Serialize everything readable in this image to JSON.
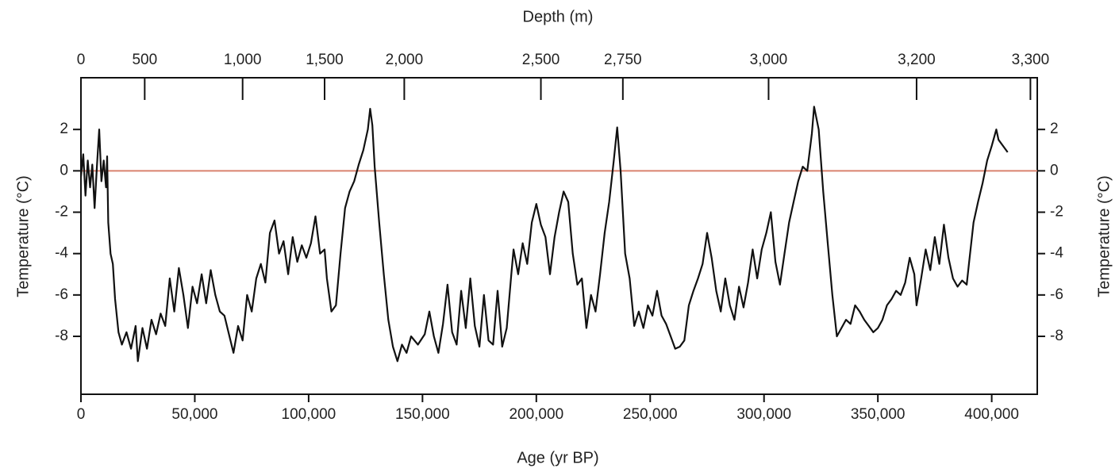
{
  "chart_data": {
    "type": "line",
    "x_label": "Age (yr BP)",
    "x2_label": "Depth (m)",
    "y_label": "Temperature (°C)",
    "xlim": [
      0,
      420000
    ],
    "xticks": [
      0,
      {
        "value": 50000,
        "label": "50,000"
      },
      {
        "value": 100000,
        "label": "100,000"
      },
      {
        "value": 150000,
        "label": "150,000"
      },
      {
        "value": 200000,
        "label": "200,000"
      },
      {
        "value": 250000,
        "label": "250,000"
      },
      {
        "value": 300000,
        "label": "300,000"
      },
      {
        "value": 350000,
        "label": "350,000"
      },
      {
        "value": 400000,
        "label": "400,000"
      }
    ],
    "x2ticks": [
      {
        "value": 0,
        "label": "0"
      },
      {
        "value": 28000,
        "label": "500"
      },
      {
        "value": 71000,
        "label": "1,000"
      },
      {
        "value": 107000,
        "label": "1,500"
      },
      {
        "value": 142000,
        "label": "2,000"
      },
      {
        "value": 202000,
        "label": "2,500"
      },
      {
        "value": 238000,
        "label": "2,750"
      },
      {
        "value": 302000,
        "label": "3,000"
      },
      {
        "value": 367000,
        "label": "3,200"
      },
      {
        "value": 417000,
        "label": "3,300"
      }
    ],
    "ylim": [
      -10.8,
      4.5
    ],
    "yticks": [
      -8,
      -6,
      -4,
      -2,
      0,
      2
    ],
    "reference_line": {
      "value": 0,
      "color": "#d9826e"
    },
    "x": [
      0,
      1000,
      2000,
      3000,
      4000,
      5000,
      6000,
      7000,
      8000,
      9000,
      10000,
      11000,
      11500,
      12000,
      13000,
      14000,
      15000,
      16500,
      18000,
      20000,
      22000,
      24000,
      25000,
      27000,
      29000,
      31000,
      33000,
      35000,
      37000,
      39000,
      41000,
      43000,
      45000,
      47000,
      49000,
      51000,
      53000,
      55000,
      57000,
      59000,
      61000,
      63000,
      65000,
      67000,
      69000,
      71000,
      73000,
      75000,
      77000,
      79000,
      81000,
      83000,
      85000,
      87000,
      89000,
      91000,
      93000,
      95000,
      97000,
      99000,
      101000,
      103000,
      105000,
      107000,
      108000,
      110000,
      112000,
      114000,
      116000,
      118000,
      120000,
      122000,
      124000,
      126000,
      127000,
      128000,
      129000,
      131000,
      133000,
      135000,
      137000,
      139000,
      141000,
      143000,
      145000,
      148000,
      151000,
      153000,
      155000,
      157000,
      159000,
      161000,
      163000,
      165000,
      167000,
      169000,
      171000,
      173000,
      175000,
      177000,
      179000,
      181000,
      183000,
      185000,
      187000,
      189000,
      190000,
      192000,
      194000,
      196000,
      198000,
      200000,
      202000,
      204000,
      206000,
      208000,
      210000,
      212000,
      214000,
      216000,
      218000,
      220000,
      222000,
      224000,
      226000,
      228000,
      230000,
      232000,
      234000,
      235500,
      237000,
      239000,
      241000,
      243000,
      245000,
      247000,
      249000,
      251000,
      253000,
      255000,
      257000,
      259000,
      261000,
      263000,
      265000,
      267000,
      269000,
      271000,
      273000,
      275000,
      277000,
      279000,
      281000,
      283000,
      285000,
      287000,
      289000,
      291000,
      293000,
      295000,
      297000,
      299000,
      301000,
      303000,
      305000,
      307000,
      309000,
      311000,
      313000,
      315000,
      317000,
      319000,
      321000,
      322000,
      324000,
      326000,
      328000,
      330000,
      332000,
      334000,
      336000,
      338000,
      340000,
      342000,
      344000,
      346000,
      348000,
      350000,
      352000,
      354000,
      356000,
      358000,
      360000,
      362000,
      364000,
      366000,
      367000,
      369000,
      371000,
      373000,
      375000,
      377000,
      379000,
      381000,
      383000,
      385000,
      387000,
      389000,
      390000,
      392000,
      394000,
      396000,
      398000,
      400000,
      402000,
      403000,
      405000,
      407000
    ],
    "series": [
      {
        "name": "Temperature",
        "color": "#111111",
        "values": [
          -0.3,
          0.8,
          -1.2,
          0.5,
          -0.8,
          0.3,
          -1.8,
          0.2,
          2.0,
          -0.5,
          0.5,
          -0.8,
          0.7,
          -2.5,
          -4.0,
          -4.5,
          -6.2,
          -7.8,
          -8.4,
          -7.8,
          -8.6,
          -7.5,
          -9.2,
          -7.6,
          -8.6,
          -7.2,
          -7.9,
          -6.9,
          -7.5,
          -5.2,
          -6.8,
          -4.7,
          -6.0,
          -7.6,
          -5.6,
          -6.4,
          -5.0,
          -6.4,
          -4.8,
          -6.0,
          -6.8,
          -7.0,
          -7.9,
          -8.8,
          -7.5,
          -8.2,
          -6.0,
          -6.8,
          -5.2,
          -4.5,
          -5.4,
          -3.0,
          -2.4,
          -4.0,
          -3.4,
          -5.0,
          -3.2,
          -4.4,
          -3.6,
          -4.2,
          -3.5,
          -2.2,
          -4.0,
          -3.8,
          -5.2,
          -6.8,
          -6.5,
          -4.0,
          -1.8,
          -1.0,
          -0.5,
          0.3,
          1.0,
          2.0,
          3.0,
          2.2,
          0.2,
          -2.5,
          -5.0,
          -7.2,
          -8.5,
          -9.2,
          -8.4,
          -8.8,
          -8.0,
          -8.4,
          -7.9,
          -6.8,
          -8.0,
          -8.8,
          -7.4,
          -5.5,
          -7.8,
          -8.4,
          -5.8,
          -7.6,
          -5.2,
          -7.5,
          -8.5,
          -6.0,
          -8.2,
          -8.4,
          -5.8,
          -8.5,
          -7.6,
          -5.0,
          -3.8,
          -5.0,
          -3.5,
          -4.5,
          -2.5,
          -1.6,
          -2.6,
          -3.2,
          -5.0,
          -3.2,
          -2.0,
          -1.0,
          -1.5,
          -4.0,
          -5.5,
          -5.2,
          -7.6,
          -6.0,
          -6.8,
          -5.0,
          -3.0,
          -1.5,
          0.5,
          2.1,
          0.0,
          -4.0,
          -5.2,
          -7.5,
          -6.8,
          -7.6,
          -6.5,
          -7.0,
          -5.8,
          -7.0,
          -7.4,
          -8.0,
          -8.6,
          -8.5,
          -8.2,
          -6.5,
          -5.8,
          -5.2,
          -4.5,
          -3.0,
          -4.2,
          -5.8,
          -6.8,
          -5.2,
          -6.5,
          -7.2,
          -5.6,
          -6.6,
          -5.4,
          -3.8,
          -5.2,
          -3.8,
          -3.0,
          -2.0,
          -4.4,
          -5.5,
          -4.0,
          -2.5,
          -1.5,
          -0.5,
          0.2,
          0.0,
          1.8,
          3.1,
          2.0,
          -1.0,
          -3.5,
          -6.0,
          -8.0,
          -7.6,
          -7.2,
          -7.4,
          -6.5,
          -6.8,
          -7.2,
          -7.5,
          -7.8,
          -7.6,
          -7.2,
          -6.5,
          -6.2,
          -5.8,
          -6.0,
          -5.4,
          -4.2,
          -5.0,
          -6.5,
          -5.2,
          -3.8,
          -4.8,
          -3.2,
          -4.5,
          -2.6,
          -4.2,
          -5.2,
          -5.6,
          -5.3,
          -5.5,
          -4.5,
          -2.5,
          -1.5,
          -0.6,
          0.5,
          1.2,
          2.0,
          1.5,
          1.2,
          0.9
        ]
      }
    ]
  }
}
